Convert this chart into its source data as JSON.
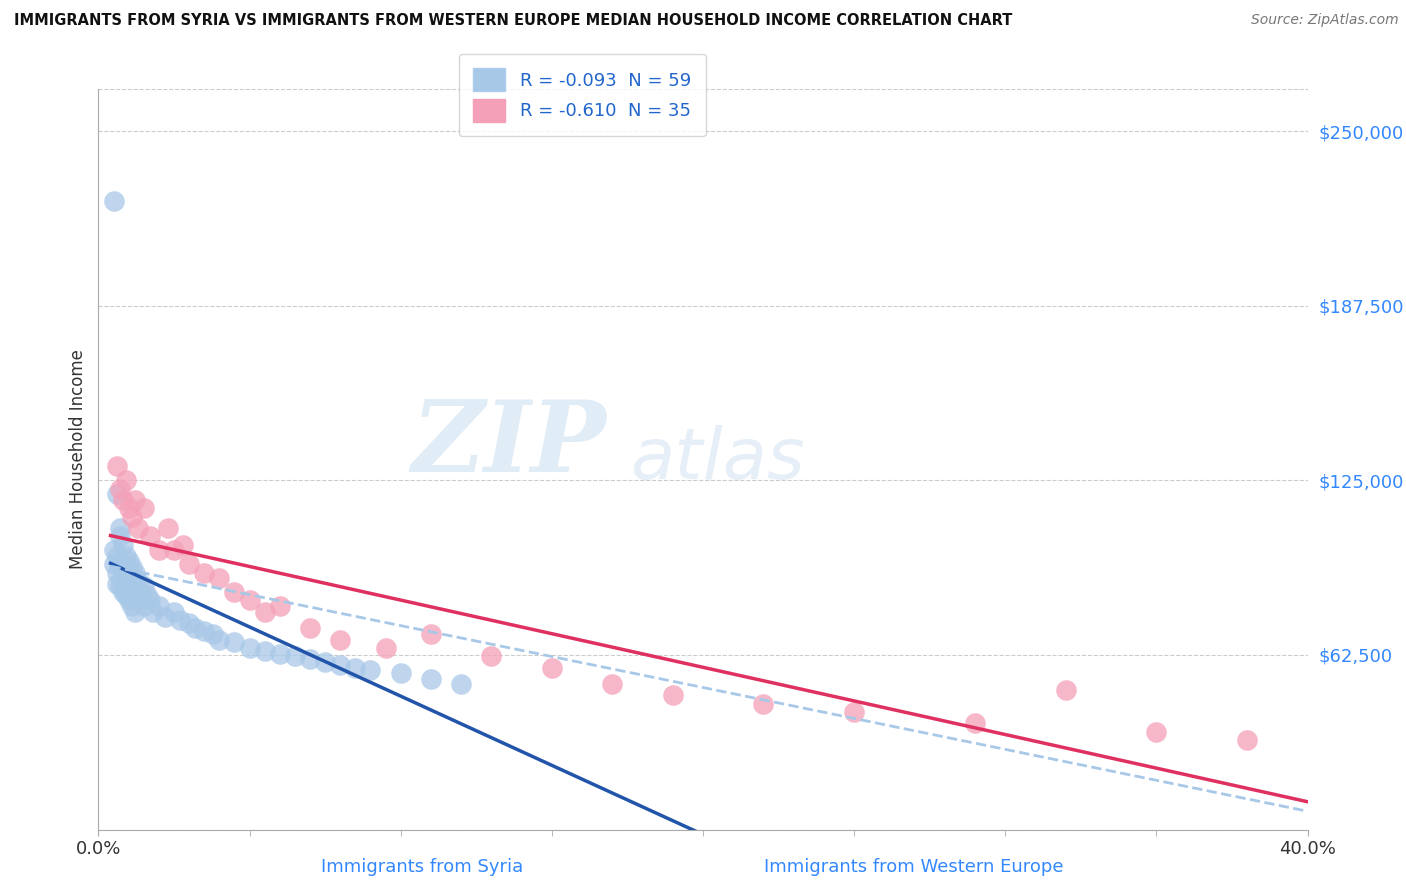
{
  "title": "IMMIGRANTS FROM SYRIA VS IMMIGRANTS FROM WESTERN EUROPE MEDIAN HOUSEHOLD INCOME CORRELATION CHART",
  "source": "Source: ZipAtlas.com",
  "ylabel": "Median Household Income",
  "yticks": [
    0,
    62500,
    125000,
    187500,
    250000
  ],
  "xmin": 0.0,
  "xmax": 0.4,
  "ymin": 0,
  "ymax": 265000,
  "legend1_label": "R = -0.093  N = 59",
  "legend2_label": "R = -0.610  N = 35",
  "color_syria": "#a8c8e8",
  "color_western": "#f4a0b8",
  "color_syria_line": "#2255aa",
  "color_western_line": "#e03060",
  "color_dashed_line": "#a8c8e8",
  "watermark_zip": "ZIP",
  "watermark_atlas": "atlas",
  "syria_x": [
    0.005,
    0.005,
    0.006,
    0.006,
    0.006,
    0.007,
    0.007,
    0.007,
    0.008,
    0.008,
    0.008,
    0.009,
    0.009,
    0.009,
    0.01,
    0.01,
    0.01,
    0.01,
    0.011,
    0.011,
    0.011,
    0.012,
    0.012,
    0.012,
    0.013,
    0.013,
    0.014,
    0.015,
    0.015,
    0.016,
    0.017,
    0.018,
    0.02,
    0.022,
    0.025,
    0.027,
    0.03,
    0.032,
    0.035,
    0.038,
    0.04,
    0.045,
    0.05,
    0.055,
    0.06,
    0.065,
    0.07,
    0.075,
    0.08,
    0.085,
    0.09,
    0.1,
    0.11,
    0.12,
    0.005,
    0.006,
    0.007,
    0.008,
    0.009
  ],
  "syria_y": [
    100000,
    95000,
    92000,
    98000,
    88000,
    105000,
    95000,
    87000,
    102000,
    93000,
    85000,
    98000,
    90000,
    84000,
    96000,
    91000,
    86000,
    82000,
    94000,
    88000,
    80000,
    92000,
    86000,
    78000,
    89000,
    83000,
    85000,
    87000,
    80000,
    84000,
    82000,
    78000,
    80000,
    76000,
    78000,
    75000,
    74000,
    72000,
    71000,
    70000,
    68000,
    67000,
    65000,
    64000,
    63000,
    62000,
    61000,
    60000,
    59000,
    58000,
    57000,
    56000,
    54000,
    52000,
    225000,
    120000,
    108000,
    95000,
    85000
  ],
  "western_x": [
    0.006,
    0.007,
    0.008,
    0.009,
    0.01,
    0.011,
    0.012,
    0.013,
    0.015,
    0.017,
    0.02,
    0.023,
    0.025,
    0.028,
    0.03,
    0.035,
    0.04,
    0.045,
    0.05,
    0.055,
    0.06,
    0.07,
    0.08,
    0.095,
    0.11,
    0.13,
    0.15,
    0.17,
    0.19,
    0.22,
    0.25,
    0.29,
    0.32,
    0.35,
    0.38
  ],
  "western_y": [
    130000,
    122000,
    118000,
    125000,
    115000,
    112000,
    118000,
    108000,
    115000,
    105000,
    100000,
    108000,
    100000,
    102000,
    95000,
    92000,
    90000,
    85000,
    82000,
    78000,
    80000,
    72000,
    68000,
    65000,
    70000,
    62000,
    58000,
    52000,
    48000,
    45000,
    42000,
    38000,
    50000,
    35000,
    32000
  ]
}
